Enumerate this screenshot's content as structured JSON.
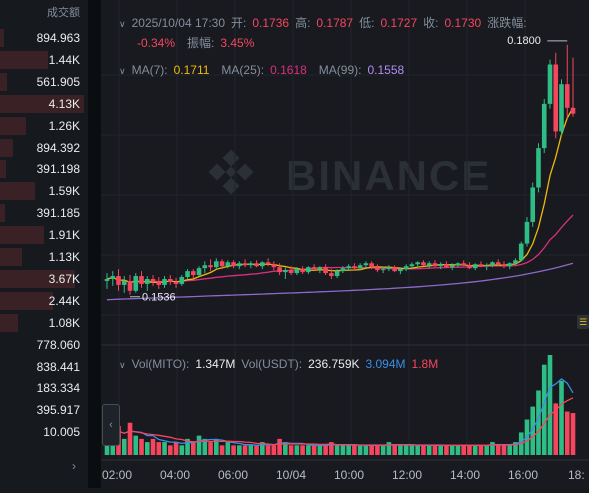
{
  "order_book": {
    "header": "成交额",
    "rows": [
      {
        "value": "894.963",
        "depth": 0.05
      },
      {
        "value": "1.44K",
        "depth": 0.55
      },
      {
        "value": "561.905",
        "depth": 0.08
      },
      {
        "value": "4.13K",
        "depth": 0.95
      },
      {
        "value": "1.26K",
        "depth": 0.3
      },
      {
        "value": "894.392",
        "depth": 0.15
      },
      {
        "value": "391.198",
        "depth": 0.07
      },
      {
        "value": "1.59K",
        "depth": 0.4
      },
      {
        "value": "391.185",
        "depth": 0.06
      },
      {
        "value": "1.91K",
        "depth": 0.5
      },
      {
        "value": "1.13K",
        "depth": 0.25
      },
      {
        "value": "3.67K",
        "depth": 0.85
      },
      {
        "value": "2.44K",
        "depth": 0.6
      },
      {
        "value": "1.08K",
        "depth": 0.2
      },
      {
        "value": "778.060",
        "depth": 0.0
      },
      {
        "value": "838.441",
        "depth": 0.0
      },
      {
        "value": "183.334",
        "depth": 0.0
      },
      {
        "value": "395.917",
        "depth": 0.0
      },
      {
        "value": "10.005",
        "depth": 0.0
      }
    ],
    "more_icon": "chevron-right-icon"
  },
  "ohlc": {
    "datetime": "2025/10/04 17:30",
    "open_label": "开:",
    "open": "0.1736",
    "high_label": "高:",
    "high": "0.1787",
    "low_label": "低:",
    "low": "0.1727",
    "close_label": "收:",
    "close": "0.1730",
    "change_label": "涨跌幅:",
    "change": "-0.34%",
    "amp_label": "振幅:",
    "amp": "3.45%"
  },
  "ma": {
    "ma7_label": "MA(7):",
    "ma7": "0.1711",
    "ma25_label": "MA(25):",
    "ma25": "0.1618",
    "ma99_label": "MA(99):",
    "ma99": "0.1558"
  },
  "volume": {
    "label1": "Vol(MITO):",
    "val1": "1.347M",
    "label2": "Vol(USDT):",
    "val2": "236.759K",
    "val3": "3.094M",
    "val4": "1.8M"
  },
  "price_markers": {
    "high": "0.1800",
    "low": "0.1536"
  },
  "x_axis": [
    "02:00",
    "04:00",
    "06:00",
    "10/04",
    "10:00",
    "12:00",
    "14:00",
    "16:00",
    "18:"
  ],
  "watermark": "BINANCE",
  "colors": {
    "up": "#2ebd85",
    "down": "#f6465d",
    "ma7": "#f0b90b",
    "ma25": "#d9307c",
    "ma99": "#8d69c9",
    "vol_line": "#3a8ee6"
  },
  "chart_data": {
    "type": "candlestick",
    "price_range": [
      0.15,
      0.181
    ],
    "candles": [
      [
        0.156,
        0.1568,
        0.1552,
        0.1562
      ],
      [
        0.1562,
        0.157,
        0.1555,
        0.1565
      ],
      [
        0.1565,
        0.1572,
        0.155,
        0.1556
      ],
      [
        0.1556,
        0.1565,
        0.1548,
        0.156
      ],
      [
        0.156,
        0.1566,
        0.1546,
        0.155
      ],
      [
        0.155,
        0.1568,
        0.1548,
        0.1565
      ],
      [
        0.1565,
        0.157,
        0.1553,
        0.1557
      ],
      [
        0.1557,
        0.1565,
        0.155,
        0.1562
      ],
      [
        0.1562,
        0.1566,
        0.1555,
        0.156
      ],
      [
        0.156,
        0.1564,
        0.1552,
        0.1556
      ],
      [
        0.1556,
        0.1565,
        0.1553,
        0.1562
      ],
      [
        0.1562,
        0.1566,
        0.1556,
        0.1559
      ],
      [
        0.1559,
        0.1563,
        0.1553,
        0.1557
      ],
      [
        0.1557,
        0.1566,
        0.1555,
        0.1564
      ],
      [
        0.1564,
        0.1572,
        0.1562,
        0.157
      ],
      [
        0.157,
        0.1572,
        0.1563,
        0.1566
      ],
      [
        0.1566,
        0.1575,
        0.1565,
        0.1573
      ],
      [
        0.1573,
        0.158,
        0.1568,
        0.1576
      ],
      [
        0.1576,
        0.1582,
        0.157,
        0.1574
      ],
      [
        0.1574,
        0.1583,
        0.1572,
        0.158
      ],
      [
        0.158,
        0.1582,
        0.1572,
        0.1575
      ],
      [
        0.1575,
        0.1581,
        0.1573,
        0.1579
      ],
      [
        0.1579,
        0.1581,
        0.1573,
        0.1575
      ],
      [
        0.1575,
        0.158,
        0.1572,
        0.1578
      ],
      [
        0.1578,
        0.1582,
        0.1574,
        0.1576
      ],
      [
        0.1576,
        0.158,
        0.1573,
        0.1578
      ],
      [
        0.1578,
        0.1581,
        0.1574,
        0.1575
      ],
      [
        0.1575,
        0.158,
        0.1572,
        0.1579
      ],
      [
        0.1579,
        0.1583,
        0.1575,
        0.1577
      ],
      [
        0.1577,
        0.158,
        0.1571,
        0.1574
      ],
      [
        0.1574,
        0.1578,
        0.1566,
        0.1569
      ],
      [
        0.1569,
        0.1574,
        0.1562,
        0.1571
      ],
      [
        0.1571,
        0.1575,
        0.1566,
        0.1568
      ],
      [
        0.1568,
        0.1574,
        0.1566,
        0.1572
      ],
      [
        0.1572,
        0.1575,
        0.1567,
        0.1569
      ],
      [
        0.1569,
        0.1575,
        0.1567,
        0.1574
      ],
      [
        0.1574,
        0.1577,
        0.157,
        0.1572
      ],
      [
        0.1572,
        0.1575,
        0.1568,
        0.1574
      ],
      [
        0.1574,
        0.1577,
        0.1566,
        0.1568
      ],
      [
        0.1568,
        0.1572,
        0.1562,
        0.1565
      ],
      [
        0.1565,
        0.1572,
        0.1563,
        0.157
      ],
      [
        0.157,
        0.1575,
        0.1568,
        0.1573
      ],
      [
        0.1573,
        0.1577,
        0.157,
        0.1575
      ],
      [
        0.1575,
        0.1578,
        0.1571,
        0.1573
      ],
      [
        0.1573,
        0.1578,
        0.1571,
        0.1576
      ],
      [
        0.1576,
        0.158,
        0.1573,
        0.1578
      ],
      [
        0.1578,
        0.158,
        0.1572,
        0.1574
      ],
      [
        0.1574,
        0.1577,
        0.1569,
        0.1571
      ],
      [
        0.1571,
        0.1574,
        0.1568,
        0.1572
      ],
      [
        0.1572,
        0.1576,
        0.157,
        0.1574
      ],
      [
        0.1574,
        0.1576,
        0.1569,
        0.157
      ],
      [
        0.157,
        0.1574,
        0.1567,
        0.1572
      ],
      [
        0.1572,
        0.1577,
        0.157,
        0.1575
      ],
      [
        0.1575,
        0.1579,
        0.1572,
        0.1577
      ],
      [
        0.1577,
        0.158,
        0.1574,
        0.1579
      ],
      [
        0.1579,
        0.1581,
        0.1575,
        0.1576
      ],
      [
        0.1576,
        0.158,
        0.1573,
        0.1578
      ],
      [
        0.1578,
        0.1581,
        0.1574,
        0.1575
      ],
      [
        0.1575,
        0.1579,
        0.1572,
        0.1577
      ],
      [
        0.1577,
        0.158,
        0.1573,
        0.1574
      ],
      [
        0.1574,
        0.1578,
        0.1571,
        0.1576
      ],
      [
        0.1576,
        0.1579,
        0.1574,
        0.1578
      ],
      [
        0.1578,
        0.1581,
        0.1575,
        0.1576
      ],
      [
        0.1576,
        0.1579,
        0.1572,
        0.1573
      ],
      [
        0.1573,
        0.1578,
        0.1571,
        0.1577
      ],
      [
        0.1577,
        0.158,
        0.1574,
        0.1575
      ],
      [
        0.1575,
        0.1578,
        0.1571,
        0.1576
      ],
      [
        0.1576,
        0.158,
        0.1574,
        0.1579
      ],
      [
        0.1579,
        0.1582,
        0.1575,
        0.1577
      ],
      [
        0.1577,
        0.158,
        0.1573,
        0.1575
      ],
      [
        0.1575,
        0.1579,
        0.1572,
        0.1578
      ],
      [
        0.1578,
        0.1583,
        0.1576,
        0.1581
      ],
      [
        0.1581,
        0.16,
        0.158,
        0.1598
      ],
      [
        0.1598,
        0.1625,
        0.1595,
        0.162
      ],
      [
        0.162,
        0.166,
        0.1615,
        0.1655
      ],
      [
        0.1655,
        0.17,
        0.165,
        0.1695
      ],
      [
        0.1695,
        0.1745,
        0.169,
        0.174
      ],
      [
        0.174,
        0.1785,
        0.1735,
        0.178
      ],
      [
        0.178,
        0.1792,
        0.1705,
        0.1712
      ],
      [
        0.1712,
        0.1765,
        0.1708,
        0.176
      ],
      [
        0.176,
        0.18,
        0.1725,
        0.1736
      ],
      [
        0.1736,
        0.1787,
        0.1727,
        0.173
      ]
    ],
    "volumes": [
      0.7,
      0.6,
      0.9,
      0.5,
      1.0,
      0.6,
      0.5,
      0.4,
      0.5,
      0.4,
      0.4,
      0.3,
      0.4,
      0.3,
      0.5,
      0.4,
      0.6,
      0.5,
      0.4,
      0.5,
      0.3,
      0.4,
      0.3,
      0.3,
      0.3,
      0.3,
      0.3,
      0.4,
      0.3,
      0.3,
      0.5,
      0.4,
      0.3,
      0.3,
      0.3,
      0.3,
      0.3,
      0.3,
      0.3,
      0.4,
      0.3,
      0.3,
      0.3,
      0.3,
      0.3,
      0.3,
      0.3,
      0.3,
      0.3,
      0.4,
      0.3,
      0.3,
      0.3,
      0.3,
      0.3,
      0.3,
      0.3,
      0.3,
      0.3,
      0.3,
      0.3,
      0.3,
      0.3,
      0.3,
      0.3,
      0.3,
      0.3,
      0.4,
      0.3,
      0.3,
      0.3,
      0.4,
      0.7,
      1.1,
      1.5,
      2.0,
      2.8,
      3.1,
      1.6,
      2.3,
      1.347,
      1.3
    ],
    "x_ticks": [
      "02:00",
      "04:00",
      "06:00",
      "10/04",
      "10:00",
      "12:00",
      "14:00",
      "16:00",
      "18:"
    ]
  }
}
